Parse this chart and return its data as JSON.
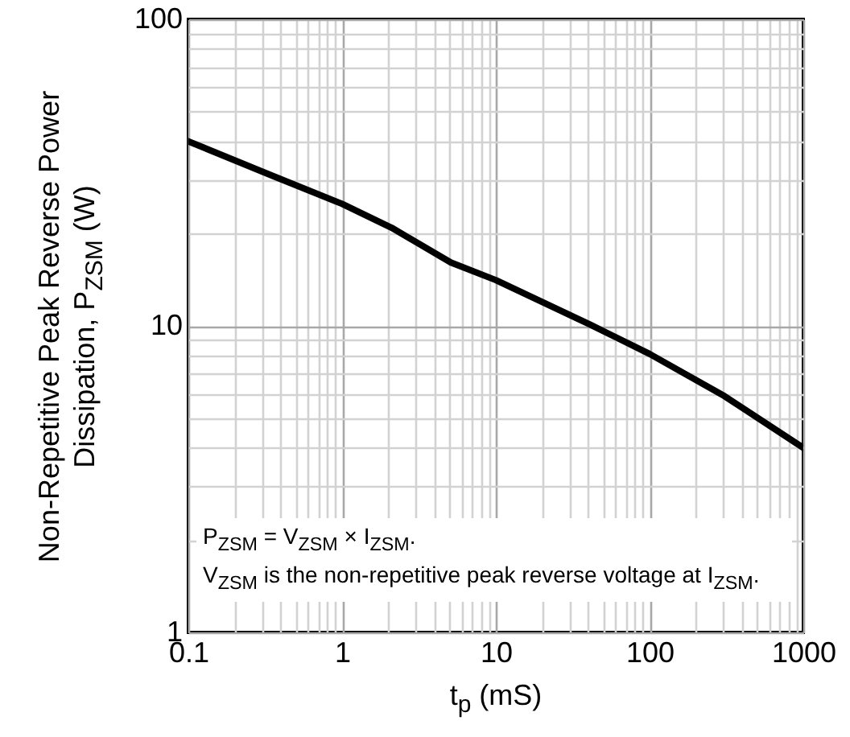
{
  "chart_data": {
    "type": "line",
    "xlabel": "t$_{p}$ (mS)",
    "ylabel": "Non-Repetitive Peak Reverse Power\nDissipation, P$_{ZSM}$ (W)",
    "x": [
      0.1,
      0.33,
      1,
      2.1,
      5.1,
      10,
      41,
      100,
      307,
      1000
    ],
    "series": [
      {
        "color": "#000000",
        "values": [
          40,
          31.3,
          25,
          20.9,
          16.1,
          14.1,
          10.1,
          8.1,
          5.9,
          4.0
        ]
      }
    ],
    "xlim": [
      0.1,
      1000
    ],
    "ylim": [
      1,
      100
    ],
    "xticks": [
      0.1,
      1,
      10,
      100,
      1000
    ],
    "yticks": [
      1,
      10,
      100
    ],
    "log": "xy",
    "grid": true,
    "marker": "none",
    "line_style": "solid",
    "annotations": [
      "P$_{ZSM}$ = V$_{ZSM}$ × I$_{ZSM}$.\nV$_{ZSM}$ is the non-repetitive peak reverse voltage at I$_{ZSM}$."
    ]
  }
}
